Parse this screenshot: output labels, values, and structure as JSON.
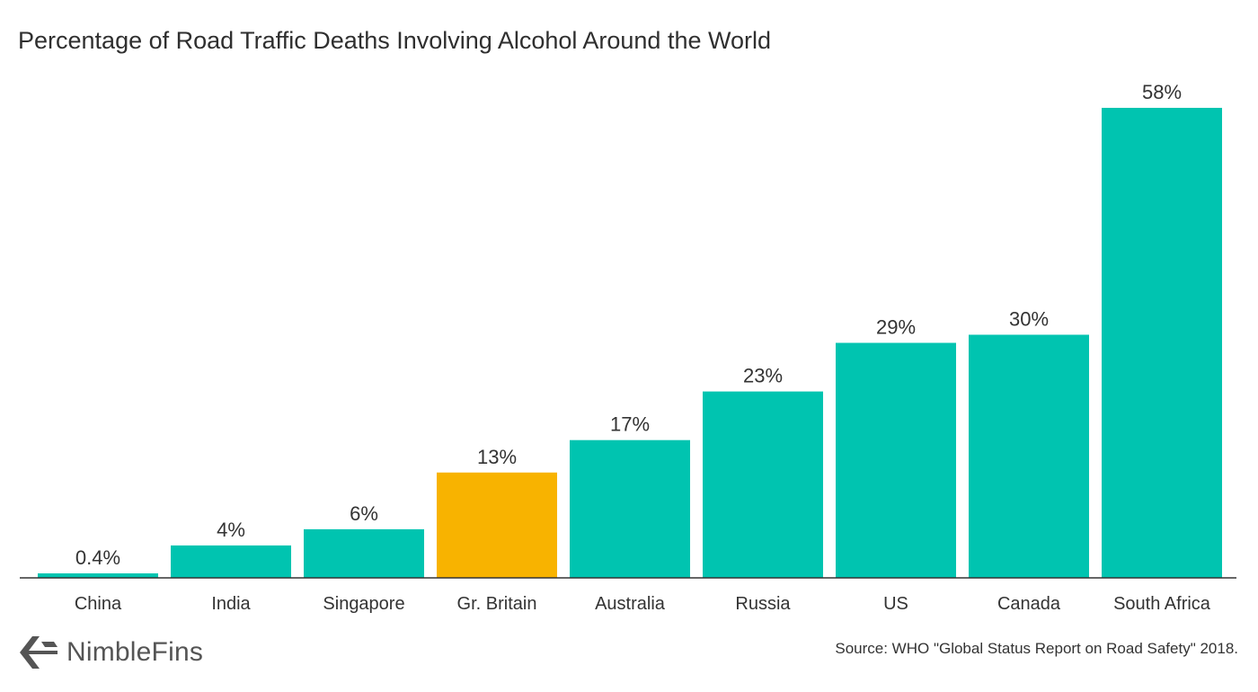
{
  "chart_data": {
    "type": "bar",
    "title": "Percentage of Road Traffic Deaths Involving Alcohol Around the World",
    "xlabel": "",
    "ylabel": "",
    "ylim": [
      0,
      58
    ],
    "categories": [
      "China",
      "India",
      "Singapore",
      "Gr. Britain",
      "Australia",
      "Russia",
      "US",
      "Canada",
      "South Africa"
    ],
    "values": [
      0.4,
      4,
      6,
      13,
      17,
      23,
      29,
      30,
      58
    ],
    "data_labels": [
      "0.4%",
      "4%",
      "6%",
      "13%",
      "17%",
      "23%",
      "29%",
      "30%",
      "58%"
    ],
    "highlight_category": "Gr. Britain",
    "grid": false,
    "legend": "none",
    "colors": {
      "default_bar": "#00c4b0",
      "highlight_bar": "#f8b300",
      "axis": "#333333"
    }
  },
  "brand": {
    "name": "NimbleFins",
    "icon": "nimblefins-logo-icon"
  },
  "source": "Source: WHO \"Global Status Report on Road Safety\" 2018."
}
